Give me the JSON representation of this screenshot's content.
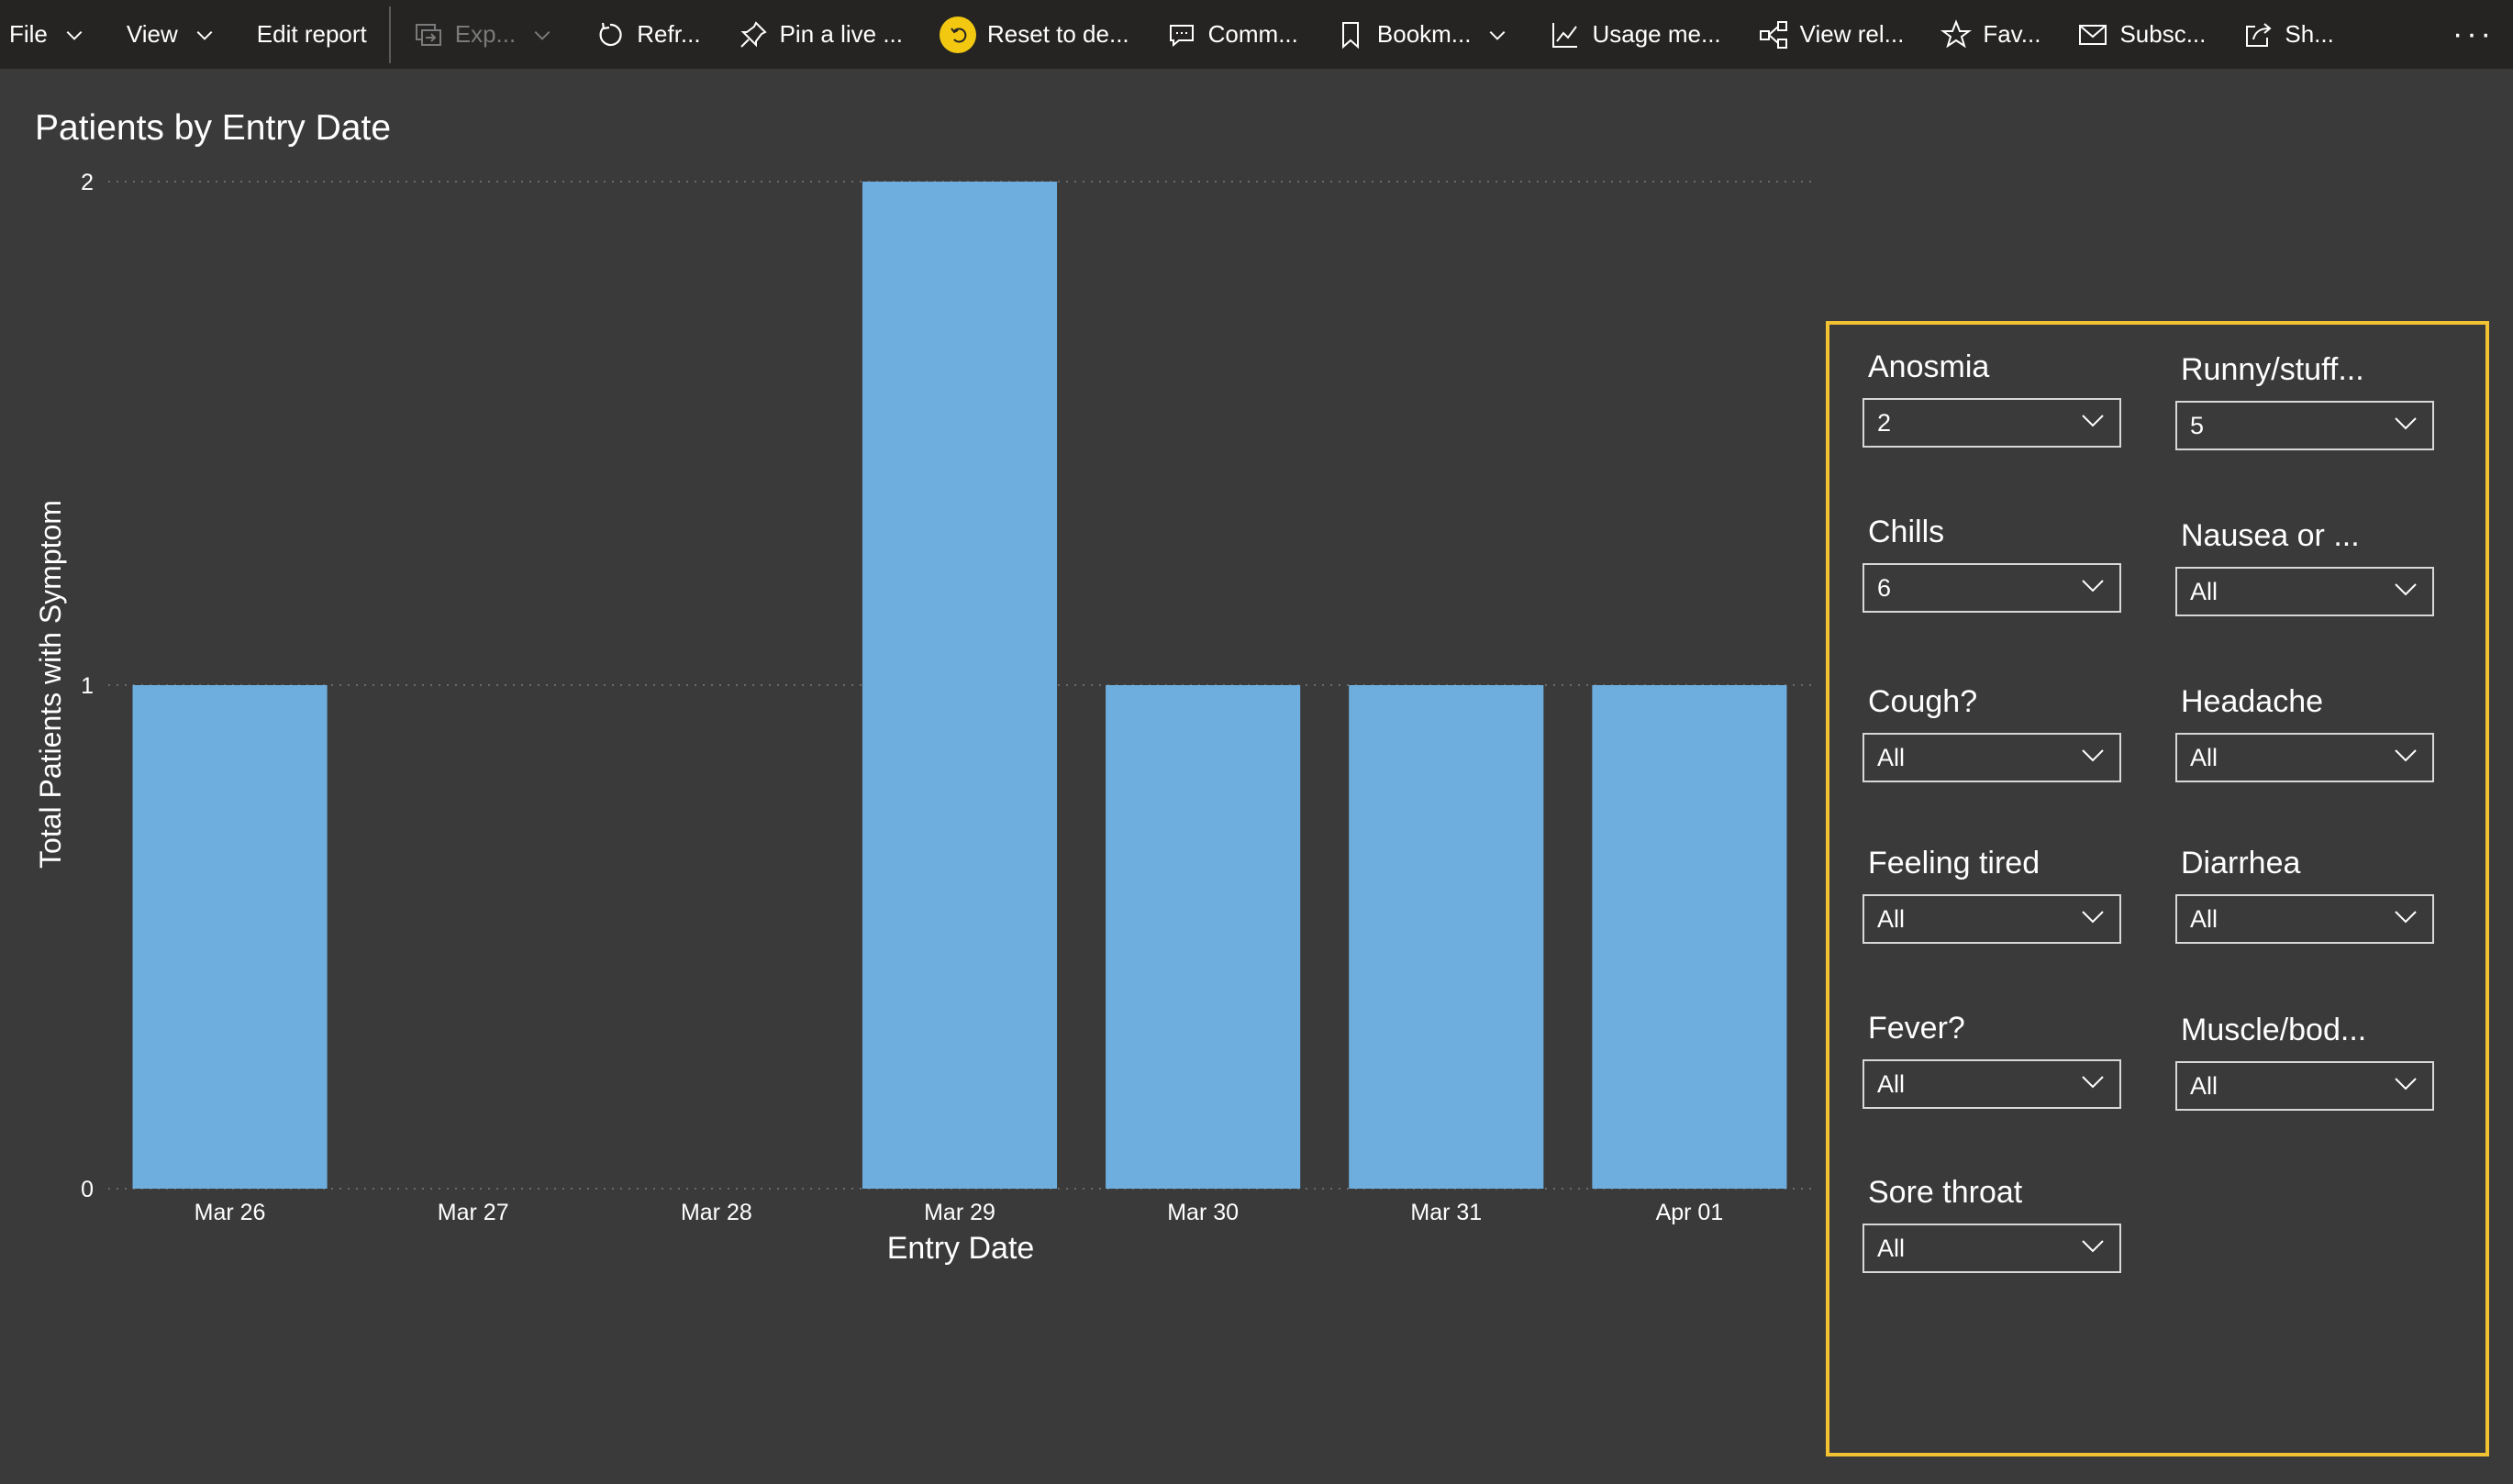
{
  "toolbar": {
    "items": [
      {
        "label": "File"
      },
      {
        "label": "View"
      },
      {
        "label": "Edit report"
      },
      {
        "label": "Exp..."
      },
      {
        "label": "Refr..."
      },
      {
        "label": "Pin a live ..."
      },
      {
        "label": "Reset to de..."
      },
      {
        "label": "Comm..."
      },
      {
        "label": "Bookm..."
      },
      {
        "label": "Usage me..."
      },
      {
        "label": "View rel..."
      },
      {
        "label": "Fav..."
      },
      {
        "label": "Subsc..."
      },
      {
        "label": "Sh..."
      }
    ],
    "more_label": "···"
  },
  "colors": {
    "bar": "#6eaede",
    "background": "#3a3a3a",
    "toolbar": "#252423",
    "slicer_border": "#f2c233",
    "reset_icon": "#f2c811"
  },
  "chart_data": {
    "type": "bar",
    "title": "Patients by Entry Date",
    "xlabel": "Entry Date",
    "ylabel": "Total Patients with Symptom",
    "categories": [
      "Mar 26",
      "Mar 27",
      "Mar 28",
      "Mar 29",
      "Mar 30",
      "Mar 31",
      "Apr 01"
    ],
    "values": [
      1,
      0,
      0,
      2,
      1,
      1,
      1
    ],
    "ylim": [
      0,
      2
    ],
    "yticks": [
      "0",
      "1",
      "2"
    ],
    "grid": true,
    "legend": "none"
  },
  "slicers": [
    {
      "title": "Anosmia",
      "value": "2"
    },
    {
      "title": "Runny/stuff...",
      "value": "5"
    },
    {
      "title": "Chills",
      "value": "6"
    },
    {
      "title": "Nausea or ...",
      "value": "All"
    },
    {
      "title": "Cough?",
      "value": "All"
    },
    {
      "title": "Headache",
      "value": "All"
    },
    {
      "title": "Feeling tired",
      "value": "All"
    },
    {
      "title": "Diarrhea",
      "value": "All"
    },
    {
      "title": "Fever?",
      "value": "All"
    },
    {
      "title": "Muscle/bod...",
      "value": "All"
    },
    {
      "title": "Sore throat",
      "value": "All"
    }
  ]
}
